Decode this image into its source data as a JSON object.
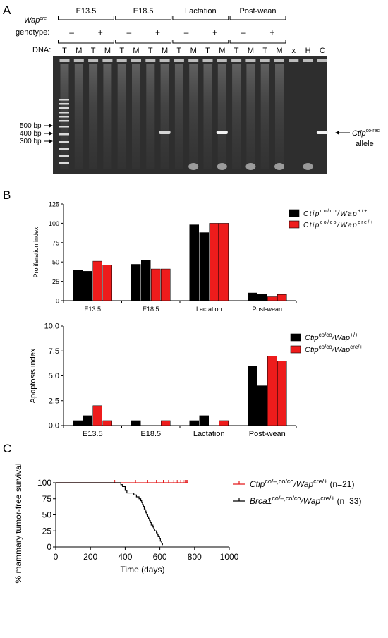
{
  "panel_a": {
    "letter": "A",
    "row_label_1": "Wap",
    "row_label_1_sup": "cre",
    "row_label_2": "genotype:",
    "dna_label": "DNA:",
    "groups": [
      "E13.5",
      "E18.5",
      "Lactation",
      "Post-wean"
    ],
    "genotype_marks": [
      "–",
      "+",
      "–",
      "+",
      "–",
      "+",
      "–",
      "+"
    ],
    "lanes": [
      "T",
      "M",
      "T",
      "M",
      "T",
      "M",
      "T",
      "M",
      "T",
      "M",
      "T",
      "M",
      "T",
      "M",
      "T",
      "M",
      "x",
      "H",
      "C"
    ],
    "ladder_labels": [
      "500 bp",
      "400 bp",
      "300 bp"
    ],
    "band_label_main": "Ctip",
    "band_label_sup": "co-rec",
    "band_label_sub": "allele"
  },
  "panel_b": {
    "letter": "B"
  },
  "panel_c": {
    "letter": "C"
  },
  "chart_data": [
    {
      "type": "bar",
      "ylabel": "Proliferation index",
      "ylim": [
        0,
        125
      ],
      "yticks": [
        "0",
        "25",
        "50",
        "75",
        "100",
        "125"
      ],
      "categories": [
        "E13.5",
        "E18.5",
        "Lactation",
        "Post-wean"
      ],
      "series": [
        {
          "name": "Ctip co/co / Wap +/+",
          "name_main": "Ctip",
          "name_sup1": "co/co",
          "name_mid": "/Wap",
          "name_sup2": "+/+",
          "color": "#000000",
          "values": [
            [
              39,
              38
            ],
            [
              47,
              52
            ],
            [
              98,
              88
            ],
            [
              10,
              8
            ]
          ]
        },
        {
          "name": "Ctip co/co / Wap cre/+",
          "name_main": "Ctip",
          "name_sup1": "co/co",
          "name_mid": "/Wap",
          "name_sup2": "cre/+",
          "color": "#ee1c1c",
          "values": [
            [
              51,
              46
            ],
            [
              41,
              41
            ],
            [
              100,
              100
            ],
            [
              5,
              8
            ]
          ]
        }
      ],
      "legend": "top-right"
    },
    {
      "type": "bar",
      "ylabel": "Apoptosis index",
      "ylim": [
        0,
        10
      ],
      "yticks": [
        "0.0",
        "2.5",
        "5.0",
        "7.5",
        "10.0"
      ],
      "categories": [
        "E13.5",
        "E18.5",
        "Lactation",
        "Post-wean"
      ],
      "series": [
        {
          "name": "Ctip co/co / Wap +/+",
          "name_main": "Ctip",
          "name_sup1": "co/co",
          "name_mid": "/Wap",
          "name_sup2": "+/+",
          "color": "#000000",
          "values": [
            [
              0.5,
              1.0
            ],
            [
              0.5,
              0.0
            ],
            [
              0.5,
              1.0
            ],
            [
              6.0,
              4.0
            ]
          ]
        },
        {
          "name": "Ctip co/co / Wap cre/+",
          "name_main": "Ctip",
          "name_sup1": "co/co",
          "name_mid": "/Wap",
          "name_sup2": "cre/+",
          "color": "#ee1c1c",
          "values": [
            [
              2.0,
              0.5
            ],
            [
              0.0,
              0.5
            ],
            [
              0.0,
              0.5
            ],
            [
              7.0,
              6.5
            ]
          ]
        }
      ],
      "legend": "top-right"
    },
    {
      "type": "line",
      "ylabel": "% mammary tumor-free survival",
      "xlabel": "Time (days)",
      "xlim": [
        0,
        1000
      ],
      "ylim": [
        0,
        100
      ],
      "xticks": [
        "0",
        "200",
        "400",
        "600",
        "800",
        "1000"
      ],
      "yticks": [
        "0",
        "25",
        "50",
        "75",
        "100"
      ],
      "series": [
        {
          "name_main": "Ctip",
          "name_sup1": "co/–,co/co",
          "name_mid": "/Wap",
          "name_sup2": "cre/+",
          "name_n": "(n=21)",
          "color": "#e31a1c",
          "steps": [
            [
              0,
              100
            ],
            [
              760,
              100
            ]
          ],
          "censor_x": [
            340,
            460,
            530,
            580,
            620,
            650,
            680,
            700,
            720,
            735,
            745,
            755,
            760
          ]
        },
        {
          "name_main": "Brca1",
          "name_sup1": "co/–,co/co",
          "name_mid": "/Wap",
          "name_sup2": "cre/+",
          "name_n": "(n=33)",
          "color": "#000000",
          "steps": [
            [
              0,
              100
            ],
            [
              370,
              100
            ],
            [
              375,
              97
            ],
            [
              385,
              94
            ],
            [
              400,
              88
            ],
            [
              410,
              84
            ],
            [
              440,
              84
            ],
            [
              450,
              81
            ],
            [
              465,
              78
            ],
            [
              480,
              75
            ],
            [
              490,
              72
            ],
            [
              495,
              69
            ],
            [
              500,
              66
            ],
            [
              505,
              63
            ],
            [
              510,
              59
            ],
            [
              515,
              56
            ],
            [
              520,
              53
            ],
            [
              525,
              50
            ],
            [
              530,
              47
            ],
            [
              535,
              44
            ],
            [
              540,
              41
            ],
            [
              545,
              38
            ],
            [
              550,
              34
            ],
            [
              560,
              31
            ],
            [
              565,
              28
            ],
            [
              570,
              25
            ],
            [
              580,
              22
            ],
            [
              585,
              19
            ],
            [
              590,
              16
            ],
            [
              598,
              13
            ],
            [
              603,
              9
            ],
            [
              610,
              6
            ],
            [
              615,
              3
            ]
          ],
          "censor_x": []
        }
      ],
      "legend": "right"
    }
  ]
}
